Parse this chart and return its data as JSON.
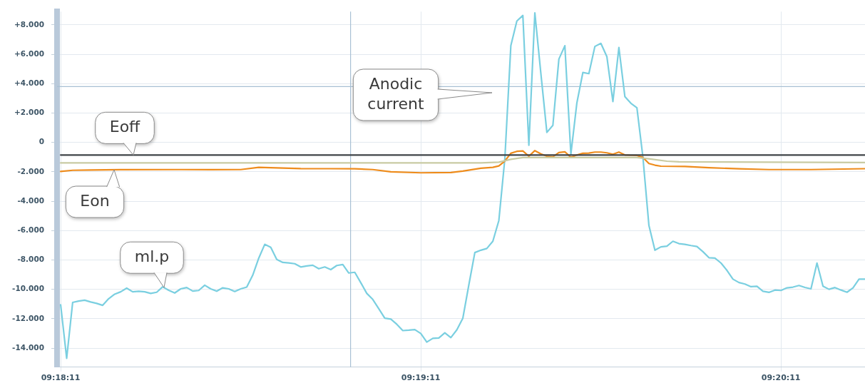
{
  "chart_data": {
    "type": "line",
    "marker": "none",
    "line_style": "solid",
    "grid": true,
    "legend": false,
    "x": [
      9.303056,
      9.303334,
      9.303612,
      9.303889,
      9.304167,
      9.304445,
      9.304723,
      9.305,
      9.305278,
      9.305556,
      9.305834,
      9.306112,
      9.306389,
      9.306667,
      9.306945,
      9.307223,
      9.3075,
      9.307778,
      9.308056,
      9.308334,
      9.308612,
      9.308889,
      9.309167,
      9.309445,
      9.309723,
      9.31,
      9.310278,
      9.310556,
      9.310834,
      9.311112,
      9.311389,
      9.311667,
      9.311945,
      9.312223,
      9.3125,
      9.312778,
      9.313056,
      9.313334,
      9.313612,
      9.313889,
      9.314167,
      9.314445,
      9.314723,
      9.315,
      9.315278,
      9.315556,
      9.315834,
      9.316112,
      9.316389,
      9.316667,
      9.316945,
      9.317223,
      9.3175,
      9.317778,
      9.318056,
      9.318334,
      9.318612,
      9.318889,
      9.319167,
      9.319445,
      9.319723,
      9.32,
      9.320278,
      9.320556,
      9.320834,
      9.321112,
      9.321389,
      9.321667,
      9.321945,
      9.322223,
      9.3225,
      9.322778,
      9.323056,
      9.323334,
      9.323612,
      9.323889,
      9.324167,
      9.324445,
      9.324723,
      9.325,
      9.325278,
      9.325556,
      9.325834,
      9.326112,
      9.326389,
      9.326667,
      9.326945,
      9.327223,
      9.3275,
      9.327778,
      9.328056,
      9.328334,
      9.328612,
      9.328889,
      9.329167,
      9.329445,
      9.329723,
      9.33,
      9.330278,
      9.330556,
      9.330834,
      9.331112,
      9.331389,
      9.331667,
      9.331945,
      9.332223,
      9.3325,
      9.332778,
      9.333056,
      9.333334,
      9.333612,
      9.333889,
      9.334167,
      9.334445,
      9.334723,
      9.335,
      9.335278,
      9.335556,
      9.335834,
      9.336112,
      9.336389,
      9.336667,
      9.336945,
      9.337223,
      9.3375,
      9.337778,
      9.338056,
      9.338334,
      9.338612,
      9.338889,
      9.339167,
      9.339445,
      9.339723,
      9.34,
      9.340278
    ],
    "series": [
      {
        "name": "Eoff",
        "color": "#404548",
        "x": [
          9.303056,
          9.340278
        ],
        "values": [
          -860,
          -860
        ]
      },
      {
        "color": "#c9cba3",
        "x": [
          9.303056,
          9.3225,
          9.323334,
          9.323889,
          9.324445,
          9.329723,
          9.330278,
          9.331112,
          9.331667,
          9.340278
        ],
        "values": [
          -1400,
          -1400,
          -1350,
          -1150,
          -1030,
          -1030,
          -1120,
          -1280,
          -1320,
          -1370
        ]
      },
      {
        "name": "Eon",
        "color": "#ee8c1c",
        "x": [
          9.303056,
          9.303612,
          9.304445,
          9.305834,
          9.308612,
          9.31,
          9.311389,
          9.312223,
          9.312778,
          9.314167,
          9.315556,
          9.316667,
          9.3175,
          9.318334,
          9.319723,
          9.321112,
          9.321667,
          9.3225,
          9.323056,
          9.323334,
          9.323612,
          9.323889,
          9.324167,
          9.324445,
          9.324723,
          9.325,
          9.325278,
          9.325556,
          9.325834,
          9.326112,
          9.326389,
          9.326667,
          9.326945,
          9.327223,
          9.3275,
          9.327778,
          9.328056,
          9.328334,
          9.328612,
          9.328889,
          9.329167,
          9.329445,
          9.329723,
          9.33,
          9.330278,
          9.330556,
          9.330834,
          9.331945,
          9.333056,
          9.334445,
          9.335834,
          9.337778,
          9.340278
        ],
        "values": [
          -1980,
          -1900,
          -1880,
          -1860,
          -1850,
          -1860,
          -1850,
          -1700,
          -1720,
          -1780,
          -1790,
          -1800,
          -1850,
          -2000,
          -2070,
          -2050,
          -1950,
          -1760,
          -1700,
          -1600,
          -1270,
          -740,
          -610,
          -580,
          -940,
          -560,
          -780,
          -940,
          -980,
          -690,
          -640,
          -1020,
          -860,
          -740,
          -730,
          -660,
          -660,
          -710,
          -810,
          -660,
          -860,
          -880,
          -890,
          -1020,
          -1440,
          -1550,
          -1620,
          -1640,
          -1720,
          -1800,
          -1850,
          -1850,
          -1790
        ]
      },
      {
        "name": "ml.p",
        "color": "#7acfe0",
        "values": [
          -11060,
          -14700,
          -10890,
          -10800,
          -10740,
          -10860,
          -10960,
          -11090,
          -10640,
          -10330,
          -10170,
          -9920,
          -10170,
          -10130,
          -10170,
          -10280,
          -10200,
          -9830,
          -10070,
          -10250,
          -9970,
          -9880,
          -10120,
          -10080,
          -9720,
          -9970,
          -10130,
          -9900,
          -9970,
          -10150,
          -9970,
          -9850,
          -9040,
          -7880,
          -6940,
          -7140,
          -7970,
          -8170,
          -8200,
          -8260,
          -8480,
          -8410,
          -8360,
          -8600,
          -8480,
          -8660,
          -8380,
          -8310,
          -8890,
          -8840,
          -9550,
          -10280,
          -10690,
          -11320,
          -11970,
          -12030,
          -12380,
          -12810,
          -12780,
          -12740,
          -13010,
          -13590,
          -13340,
          -13310,
          -12960,
          -13290,
          -12760,
          -11970,
          -9700,
          -7500,
          -7340,
          -7220,
          -6730,
          -5320,
          -1100,
          6580,
          8260,
          8640,
          -200,
          8810,
          4700,
          680,
          1160,
          5670,
          6580,
          -810,
          2690,
          4760,
          4680,
          6530,
          6740,
          5830,
          2780,
          6460,
          3110,
          2660,
          2360,
          -1000,
          -5650,
          -7340,
          -7110,
          -7060,
          -6730,
          -6890,
          -6940,
          -7020,
          -7090,
          -7440,
          -7850,
          -7880,
          -8210,
          -8710,
          -9310,
          -9540,
          -9640,
          -9820,
          -9790,
          -10130,
          -10210,
          -10050,
          -10080,
          -9900,
          -9850,
          -9740,
          -9870,
          -9970,
          -8210,
          -9790,
          -10000,
          -9880,
          -10050,
          -10200,
          -9900,
          -9310,
          -9310
        ]
      }
    ],
    "xlim": [
      9.302889,
      9.340278
    ],
    "xticks": [
      {
        "value": 9.303056,
        "label": "09:18:11"
      },
      {
        "value": 9.319722,
        "label": "09:19:11"
      },
      {
        "value": 9.336389,
        "label": "09:20:11"
      }
    ],
    "ylim": [
      -15300,
      8900
    ],
    "yticks": [
      {
        "value": -14000,
        "label": "-14.000"
      },
      {
        "value": -12000,
        "label": "-12.000"
      },
      {
        "value": -10000,
        "label": "-10.000"
      },
      {
        "value": -8000,
        "label": "-8.000"
      },
      {
        "value": -6000,
        "label": "-6.000"
      },
      {
        "value": -4000,
        "label": "-4.000"
      },
      {
        "value": -2000,
        "label": "-2.000"
      },
      0,
      {
        "value": 2000,
        "label": "+2.000"
      },
      {
        "value": 4000,
        "label": "+4.000"
      },
      {
        "value": 6000,
        "label": "+6.000"
      },
      {
        "value": 8000,
        "label": "+8.000"
      }
    ],
    "ref_lines": [
      {
        "axis": "y",
        "value": 3800,
        "color": "#a9c0d4"
      },
      {
        "axis": "x",
        "value": 9.316472,
        "color": "#a9c0d4"
      }
    ],
    "annotations": [
      "Anodic current"
    ]
  }
}
